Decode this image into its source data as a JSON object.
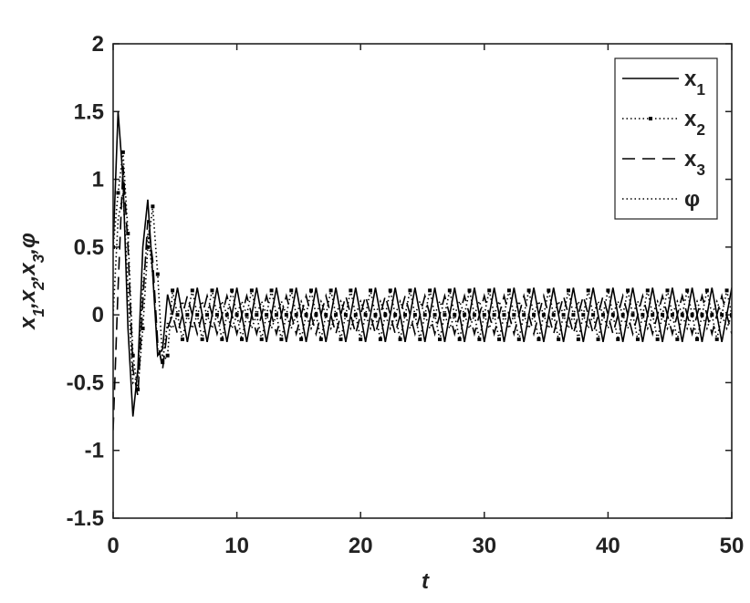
{
  "chart_data": {
    "type": "line",
    "xlabel": "t",
    "ylabel": "x1,x2,x3,φ",
    "xlim": [
      0,
      50
    ],
    "xticks": [
      0,
      10,
      20,
      30,
      40,
      50
    ],
    "ylim": [
      -1.5,
      2
    ],
    "yticks": [
      -1.5,
      -1,
      -0.5,
      0,
      0.5,
      1,
      1.5,
      2
    ],
    "legend": "upper right",
    "x": [
      0,
      0.4,
      0.8,
      1.2,
      1.6,
      2,
      2.4,
      2.8,
      3.2,
      3.6,
      4,
      4.4,
      4.8,
      5.2,
      5.6,
      6,
      6.4,
      6.8,
      7.2,
      7.6,
      8,
      8.4,
      8.8,
      9.2,
      9.6,
      10,
      10.4,
      10.8,
      11.2,
      11.6,
      12,
      12.4,
      12.8,
      13.2,
      13.6,
      14,
      14.4,
      14.8,
      15.2,
      15.6,
      16,
      16.4,
      16.8,
      17.2,
      17.6,
      18,
      18.4,
      18.8,
      19.2,
      19.6,
      20,
      20.4,
      20.8,
      21.2,
      21.6,
      22,
      22.4,
      22.8,
      23.2,
      23.6,
      24,
      24.4,
      24.8,
      25.2,
      25.6,
      26,
      26.4,
      26.8,
      27.2,
      27.6,
      28,
      28.4,
      28.8,
      29.2,
      29.6,
      30,
      30.4,
      30.8,
      31.2,
      31.6,
      32,
      32.4,
      32.8,
      33.2,
      33.6,
      34,
      34.4,
      34.8,
      35.2,
      35.6,
      36,
      36.4,
      36.8,
      37.2,
      37.6,
      38,
      38.4,
      38.8,
      39.2,
      39.6,
      40,
      40.4,
      40.8,
      41.2,
      41.6,
      42,
      42.4,
      42.8,
      43.2,
      43.6,
      44,
      44.4,
      44.8,
      45.2,
      45.6,
      46,
      46.4,
      46.8,
      47.2,
      47.6,
      48,
      48.4,
      48.8,
      49.2,
      49.6,
      50
    ],
    "series": [
      {
        "name": "x1",
        "color": "#000000",
        "linestyle": "solid",
        "values": [
          0.5,
          1.5,
          1.0,
          -0.1,
          -0.75,
          -0.4,
          0.5,
          0.85,
          0.3,
          -0.3,
          -0.25,
          0.15,
          0,
          0.2,
          0,
          -0.2,
          0,
          0.2,
          0,
          -0.2,
          0,
          0.2,
          0,
          -0.2,
          0,
          0.2,
          0,
          -0.2,
          0,
          0.2,
          0,
          -0.2,
          0,
          0.2,
          0,
          -0.2,
          0,
          0.2,
          0,
          -0.2,
          0,
          0.2,
          0,
          -0.2,
          0,
          0.2,
          0,
          -0.2,
          0,
          0.2,
          0,
          -0.2,
          0,
          0.2,
          0,
          -0.2,
          0,
          0.2,
          0,
          -0.2,
          0,
          0.2,
          0,
          -0.2,
          0,
          0.2,
          0,
          -0.2,
          0,
          0.2,
          0,
          -0.2,
          0,
          0.2,
          0,
          -0.2,
          0,
          0.2,
          0,
          -0.2,
          0,
          0.2,
          0,
          -0.2,
          0,
          0.2,
          0,
          -0.2,
          0,
          0.2,
          0,
          -0.2,
          0,
          0.2,
          0,
          -0.2,
          0,
          0.2,
          0,
          -0.2,
          0,
          0.2,
          0,
          -0.2,
          0,
          0.2,
          0,
          -0.2,
          0,
          0.2,
          0,
          -0.2,
          0,
          0.2,
          0,
          -0.2,
          0,
          0.2,
          0,
          -0.2,
          0,
          0.2,
          0,
          -0.2,
          0,
          0.2
        ]
      },
      {
        "name": "x2",
        "color": "#000000",
        "linestyle": "dotted",
        "marker": "square",
        "values": [
          0.5,
          0.9,
          1.2,
          0.6,
          -0.3,
          -0.55,
          -0.1,
          0.5,
          0.8,
          0.3,
          -0.35,
          -0.3,
          0.18,
          0,
          -0.18,
          0,
          0.18,
          0,
          -0.18,
          0,
          0.18,
          0,
          -0.18,
          0,
          0.18,
          0,
          -0.18,
          0,
          0.18,
          0,
          -0.18,
          0,
          0.18,
          0,
          -0.18,
          0,
          0.18,
          0,
          -0.18,
          0,
          0.18,
          0,
          -0.18,
          0,
          0.18,
          0,
          -0.18,
          0,
          0.18,
          0,
          -0.18,
          0,
          0.18,
          0,
          -0.18,
          0,
          0.18,
          0,
          -0.18,
          0,
          0.18,
          0,
          -0.18,
          0,
          0.18,
          0,
          -0.18,
          0,
          0.18,
          0,
          -0.18,
          0,
          0.18,
          0,
          -0.18,
          0,
          0.18,
          0,
          -0.18,
          0,
          0.18,
          0,
          -0.18,
          0,
          0.18,
          0,
          -0.18,
          0,
          0.18,
          0,
          -0.18,
          0,
          0.18,
          0,
          -0.18,
          0,
          0.18,
          0,
          -0.18,
          0,
          0.18,
          0,
          -0.18,
          0,
          0.18,
          0,
          -0.18,
          0,
          0.18,
          0,
          -0.18,
          0,
          0.18,
          0,
          -0.18,
          0,
          0.18,
          0,
          -0.18,
          0,
          0.18,
          0,
          -0.18,
          0,
          0.18,
          0
        ]
      },
      {
        "name": "x3",
        "color": "#000000",
        "linestyle": "dashed",
        "values": [
          -0.85,
          0.2,
          1.1,
          0.5,
          -0.4,
          -0.6,
          0.1,
          0.7,
          0.4,
          -0.2,
          -0.4,
          -0.1,
          0,
          -0.14,
          0,
          0.14,
          0,
          -0.14,
          0,
          0.14,
          0,
          -0.14,
          0,
          0.14,
          0,
          -0.14,
          0,
          0.14,
          0,
          -0.14,
          0,
          0.14,
          0,
          -0.14,
          0,
          0.14,
          0,
          -0.14,
          0,
          0.14,
          0,
          -0.14,
          0,
          0.14,
          0,
          -0.14,
          0,
          0.14,
          0,
          -0.14,
          0,
          0.14,
          0,
          -0.14,
          0,
          0.14,
          0,
          -0.14,
          0,
          0.14,
          0,
          -0.14,
          0,
          0.14,
          0,
          -0.14,
          0,
          0.14,
          0,
          -0.14,
          0,
          0.14,
          0,
          -0.14,
          0,
          0.14,
          0,
          -0.14,
          0,
          0.14,
          0,
          -0.14,
          0,
          0.14,
          0,
          -0.14,
          0,
          0.14,
          0,
          -0.14,
          0,
          0.14,
          0,
          -0.14,
          0,
          0.14,
          0,
          -0.14,
          0,
          0.14,
          0,
          -0.14,
          0,
          0.14,
          0,
          -0.14,
          0,
          0.14,
          0,
          -0.14,
          0,
          0.14,
          0,
          -0.14,
          0,
          0.14,
          0,
          -0.14,
          0,
          0.14,
          0,
          -0.14,
          0,
          0.14,
          0,
          -0.14
        ]
      },
      {
        "name": "φ",
        "color": "#000000",
        "linestyle": "dotted",
        "values": [
          0,
          0.7,
          0.9,
          0.2,
          -0.5,
          -0.45,
          0.2,
          0.6,
          0.3,
          -0.25,
          -0.35,
          -0.05,
          -0.1,
          0,
          0.1,
          0,
          -0.1,
          0,
          0.1,
          0,
          -0.1,
          0,
          0.1,
          0,
          -0.1,
          0,
          0.1,
          0,
          -0.1,
          0,
          0.1,
          0,
          -0.1,
          0,
          0.1,
          0,
          -0.1,
          0,
          0.1,
          0,
          -0.1,
          0,
          0.1,
          0,
          -0.1,
          0,
          0.1,
          0,
          -0.1,
          0,
          0.1,
          0,
          -0.1,
          0,
          0.1,
          0,
          -0.1,
          0,
          0.1,
          0,
          -0.1,
          0,
          0.1,
          0,
          -0.1,
          0,
          0.1,
          0,
          -0.1,
          0,
          0.1,
          0,
          -0.1,
          0,
          0.1,
          0,
          -0.1,
          0,
          0.1,
          0,
          -0.1,
          0,
          0.1,
          0,
          -0.1,
          0,
          0.1,
          0,
          -0.1,
          0,
          0.1,
          0,
          -0.1,
          0,
          0.1,
          0,
          -0.1,
          0,
          0.1,
          0,
          -0.1,
          0,
          0.1,
          0,
          -0.1,
          0,
          0.1,
          0,
          -0.1,
          0,
          0.1,
          0,
          -0.1,
          0,
          0.1,
          0,
          -0.1,
          0,
          0.1,
          0,
          -0.1,
          0,
          0.1,
          0,
          -0.1,
          0
        ]
      }
    ]
  }
}
